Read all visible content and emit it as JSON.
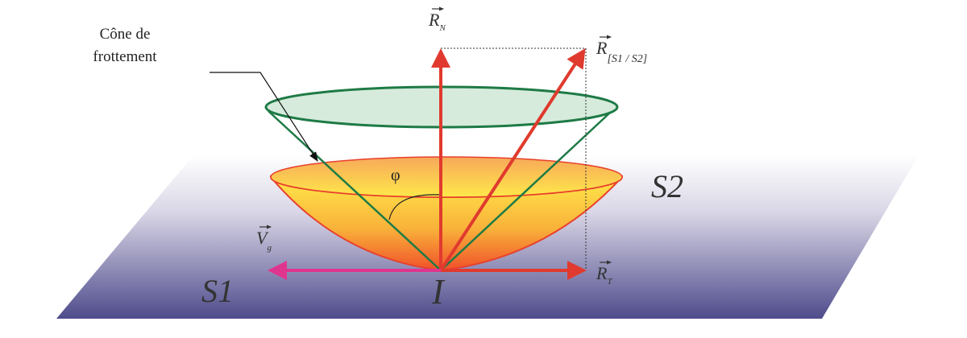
{
  "labels": {
    "cone_caption_line1": "Cône de",
    "cone_caption_line2": "frottement",
    "normal_reaction": "R",
    "normal_reaction_sub": "N",
    "resultant": "R",
    "resultant_sub": "[S1 / S2]",
    "tangential_reaction": "R",
    "tangential_reaction_sub": "T",
    "sliding_velocity": "V",
    "sliding_velocity_sub": "g",
    "angle": "φ",
    "solid_2": "S2",
    "solid_1": "S1",
    "contact_point": "I"
  },
  "colors": {
    "reaction_arrows": "#e03a2e",
    "velocity_arrow": "#e0358f",
    "friction_cone": "#1e7a45",
    "plane_bottom": "#4e4b8c",
    "cone_top": "#ffe84a",
    "cone_bottom": "#f0502a"
  }
}
